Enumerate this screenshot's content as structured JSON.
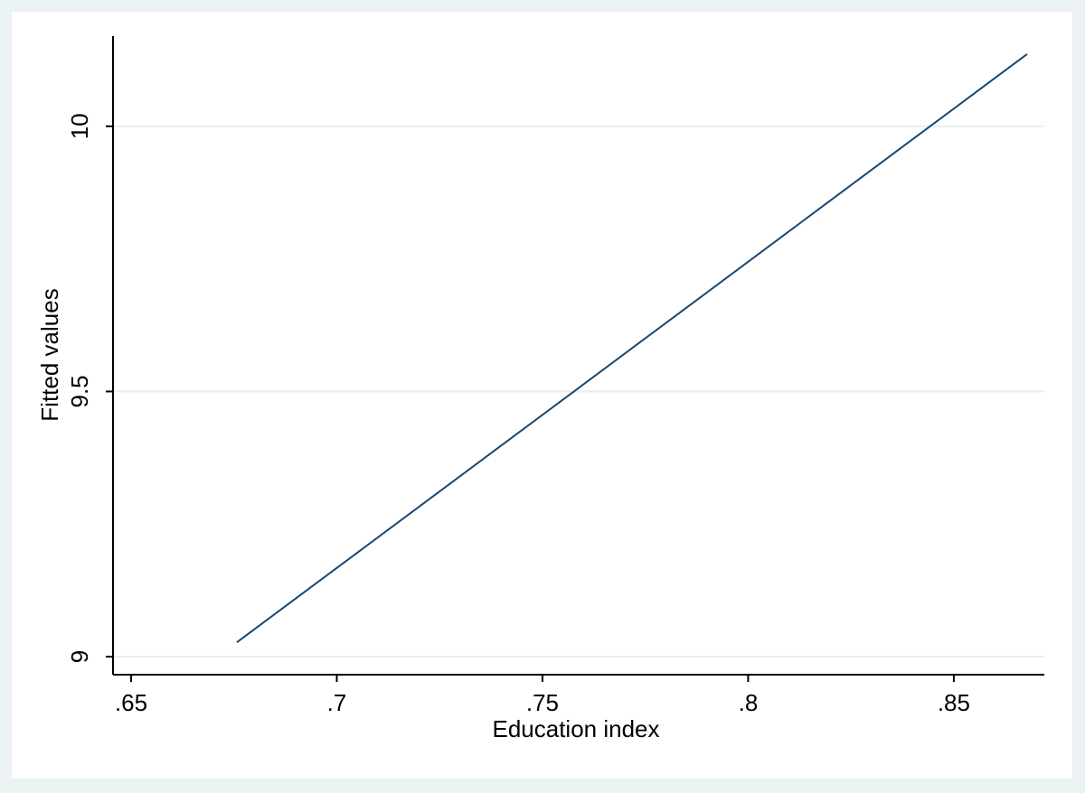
{
  "chart_data": {
    "type": "line",
    "x_label": "Education index",
    "y_label": "Fitted values",
    "x": [
      0.6757,
      0.8678
    ],
    "values": [
      9.027,
      10.136
    ],
    "color": "#1a476f",
    "xlim": [
      0.6445,
      0.872
    ],
    "xticks": [
      {
        "value": 0.65,
        "label": ".65"
      },
      {
        "value": 0.7,
        "label": ".7"
      },
      {
        "value": 0.75,
        "label": ".75"
      },
      {
        "value": 0.8,
        "label": ".8"
      },
      {
        "value": 0.85,
        "label": ".85"
      }
    ],
    "ylim": [
      8.966,
      10.17
    ],
    "yticks": [
      9,
      9.5,
      10
    ],
    "grid": true
  }
}
